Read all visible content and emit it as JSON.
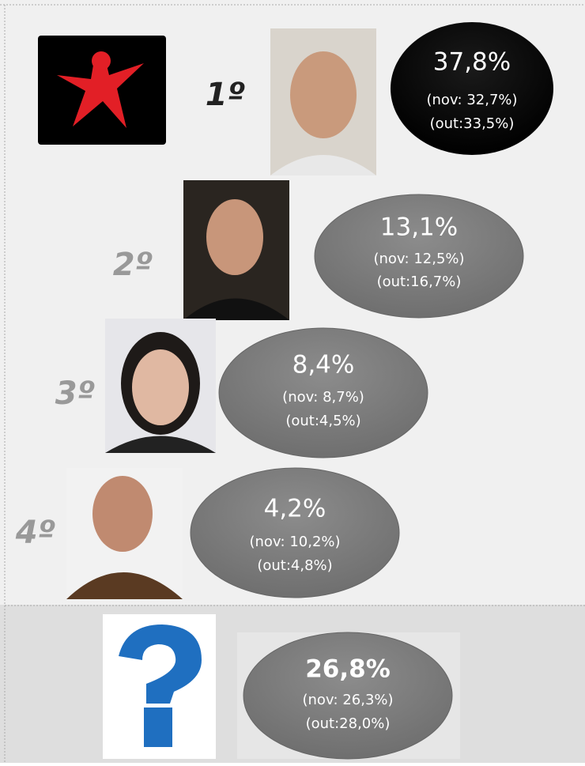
{
  "ranking": [
    {
      "rank": "1º",
      "value": "37,8%",
      "nov": "(nov: 32,7%)",
      "out": "(out:33,5%)"
    },
    {
      "rank": "2º",
      "value": "13,1%",
      "nov": "(nov: 12,5%)",
      "out": "(out:16,7%)"
    },
    {
      "rank": "3º",
      "value": "8,4%",
      "nov": "(nov: 8,7%)",
      "out": "(out:4,5%)"
    },
    {
      "rank": "4º",
      "value": "4,2%",
      "nov": "(nov: 10,2%)",
      "out": "(out:4,8%)"
    }
  ],
  "undecided": {
    "value": "26,8%",
    "nov": "(nov: 26,3%)",
    "out": "(out:28,0%)"
  }
}
